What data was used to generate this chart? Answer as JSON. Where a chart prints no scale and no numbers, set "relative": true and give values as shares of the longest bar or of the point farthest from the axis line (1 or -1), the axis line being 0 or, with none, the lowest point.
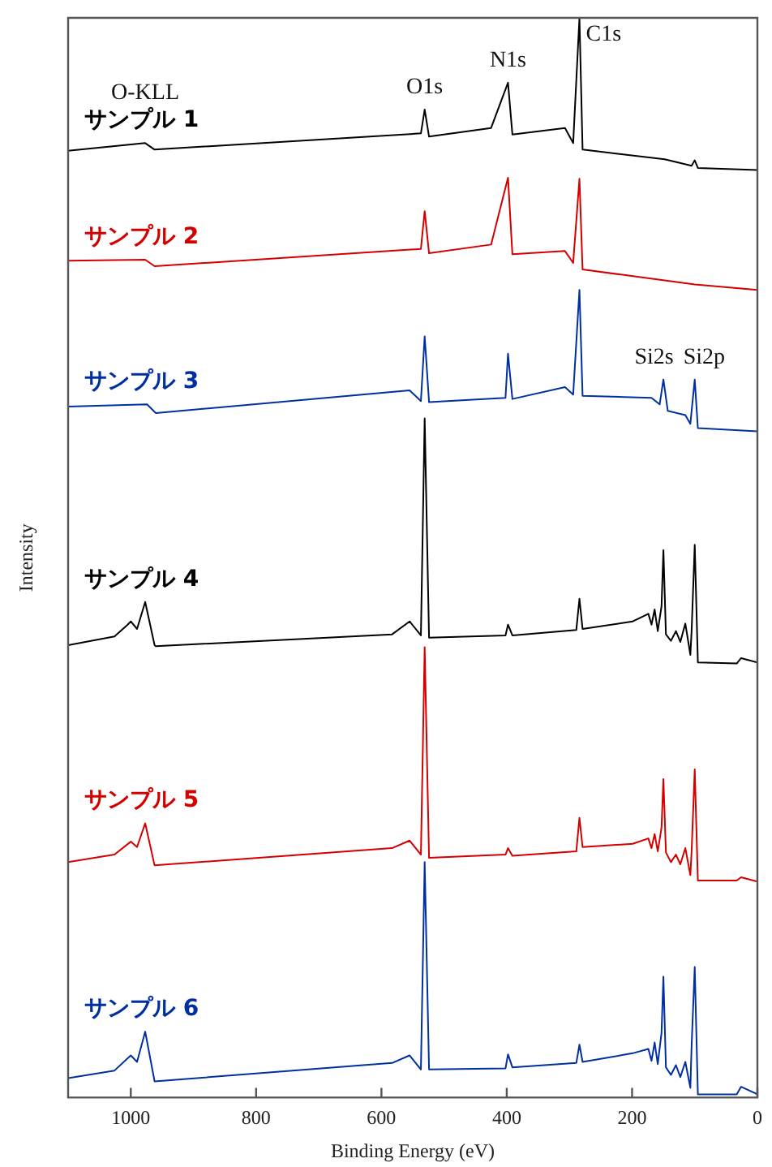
{
  "chart_data": {
    "type": "line",
    "relative": true,
    "xlabel": "Binding Energy (eV)",
    "ylabel": "Intensity",
    "xlim": [
      1100,
      0
    ],
    "xticks": [
      1000,
      800,
      600,
      400,
      200,
      0
    ],
    "grid": false,
    "legend": false,
    "marker": "none",
    "line_style": "solid",
    "annotations": [
      {
        "text": "O-KLL",
        "x": 977,
        "y": 0.884
      },
      {
        "text": "O1s",
        "x": 531,
        "y": 0.915
      },
      {
        "text": "N1s",
        "x": 398,
        "y": 0.94
      },
      {
        "text": "C1s",
        "x": 284,
        "y": 1.0
      },
      {
        "text": "Si2s",
        "x": 150,
        "y": 0.665
      },
      {
        "text": "Si2p",
        "x": 100,
        "y": 0.665
      }
    ],
    "series": [
      {
        "name": "サンプル 1",
        "color": "#000000",
        "x": [
          1100,
          977,
          962,
          537,
          531,
          524,
          425,
          398,
          391,
          307,
          294,
          284,
          279,
          148,
          105,
          100,
          95,
          0
        ],
        "values": [
          0.877,
          0.884,
          0.878,
          0.893,
          0.915,
          0.89,
          0.898,
          0.94,
          0.892,
          0.898,
          0.884,
          1.0,
          0.878,
          0.869,
          0.863,
          0.868,
          0.861,
          0.859
        ]
      },
      {
        "name": "サンプル 2",
        "color": "#d40000",
        "x": [
          1100,
          977,
          962,
          537,
          531,
          524,
          425,
          398,
          391,
          307,
          294,
          284,
          279,
          100,
          0
        ],
        "values": [
          0.775,
          0.776,
          0.77,
          0.786,
          0.821,
          0.782,
          0.79,
          0.852,
          0.781,
          0.784,
          0.773,
          0.851,
          0.767,
          0.753,
          0.748
        ]
      },
      {
        "name": "サンプル 3",
        "color": "#0030a0",
        "x": [
          1100,
          974,
          960,
          555,
          537,
          531,
          524,
          402,
          398,
          391,
          307,
          294,
          284,
          279,
          169,
          156,
          150,
          143,
          115,
          107,
          100,
          95,
          0
        ],
        "values": [
          0.64,
          0.642,
          0.634,
          0.655,
          0.645,
          0.705,
          0.644,
          0.648,
          0.689,
          0.647,
          0.658,
          0.651,
          0.748,
          0.65,
          0.648,
          0.642,
          0.665,
          0.636,
          0.632,
          0.624,
          0.665,
          0.62,
          0.617
        ]
      },
      {
        "name": "サンプル 4",
        "color": "#000000",
        "x": [
          1100,
          1026,
          1005,
          1000,
          990,
          977,
          962,
          960,
          583,
          555,
          537,
          531,
          524,
          402,
          398,
          391,
          289,
          284,
          279,
          199,
          174,
          169,
          164,
          159,
          153,
          150,
          146,
          138,
          130,
          123,
          115,
          107,
          105,
          100,
          95,
          33,
          26,
          0
        ],
        "values": [
          0.419,
          0.427,
          0.438,
          0.441,
          0.434,
          0.459,
          0.419,
          0.418,
          0.429,
          0.441,
          0.428,
          0.629,
          0.426,
          0.428,
          0.438,
          0.428,
          0.433,
          0.462,
          0.434,
          0.441,
          0.448,
          0.438,
          0.452,
          0.432,
          0.455,
          0.507,
          0.429,
          0.423,
          0.432,
          0.422,
          0.439,
          0.41,
          0.432,
          0.512,
          0.403,
          0.402,
          0.407,
          0.403
        ]
      },
      {
        "name": "サンプル 5",
        "color": "#d40000",
        "x": [
          1100,
          1026,
          1000,
          990,
          977,
          962,
          583,
          555,
          537,
          531,
          524,
          402,
          398,
          391,
          289,
          284,
          279,
          199,
          174,
          169,
          164,
          159,
          153,
          150,
          146,
          138,
          130,
          123,
          115,
          107,
          105,
          100,
          95,
          33,
          26,
          0
        ],
        "values": [
          0.218,
          0.225,
          0.237,
          0.232,
          0.254,
          0.215,
          0.231,
          0.238,
          0.225,
          0.417,
          0.222,
          0.225,
          0.231,
          0.224,
          0.228,
          0.259,
          0.232,
          0.235,
          0.24,
          0.231,
          0.244,
          0.228,
          0.25,
          0.295,
          0.227,
          0.218,
          0.225,
          0.216,
          0.231,
          0.206,
          0.228,
          0.304,
          0.201,
          0.201,
          0.204,
          0.2
        ]
      },
      {
        "name": "サンプル 6",
        "color": "#0030a0",
        "x": [
          1100,
          1026,
          1000,
          990,
          977,
          962,
          583,
          555,
          537,
          531,
          524,
          402,
          398,
          391,
          289,
          284,
          279,
          199,
          174,
          169,
          164,
          159,
          153,
          150,
          146,
          138,
          130,
          123,
          115,
          107,
          105,
          100,
          95,
          33,
          26,
          0
        ],
        "values": [
          0.018,
          0.025,
          0.039,
          0.033,
          0.061,
          0.015,
          0.032,
          0.039,
          0.026,
          0.218,
          0.026,
          0.027,
          0.04,
          0.028,
          0.032,
          0.049,
          0.033,
          0.041,
          0.045,
          0.034,
          0.051,
          0.031,
          0.06,
          0.112,
          0.028,
          0.021,
          0.03,
          0.019,
          0.033,
          0.009,
          0.048,
          0.121,
          0.003,
          0.003,
          0.01,
          0.003
        ]
      }
    ]
  }
}
